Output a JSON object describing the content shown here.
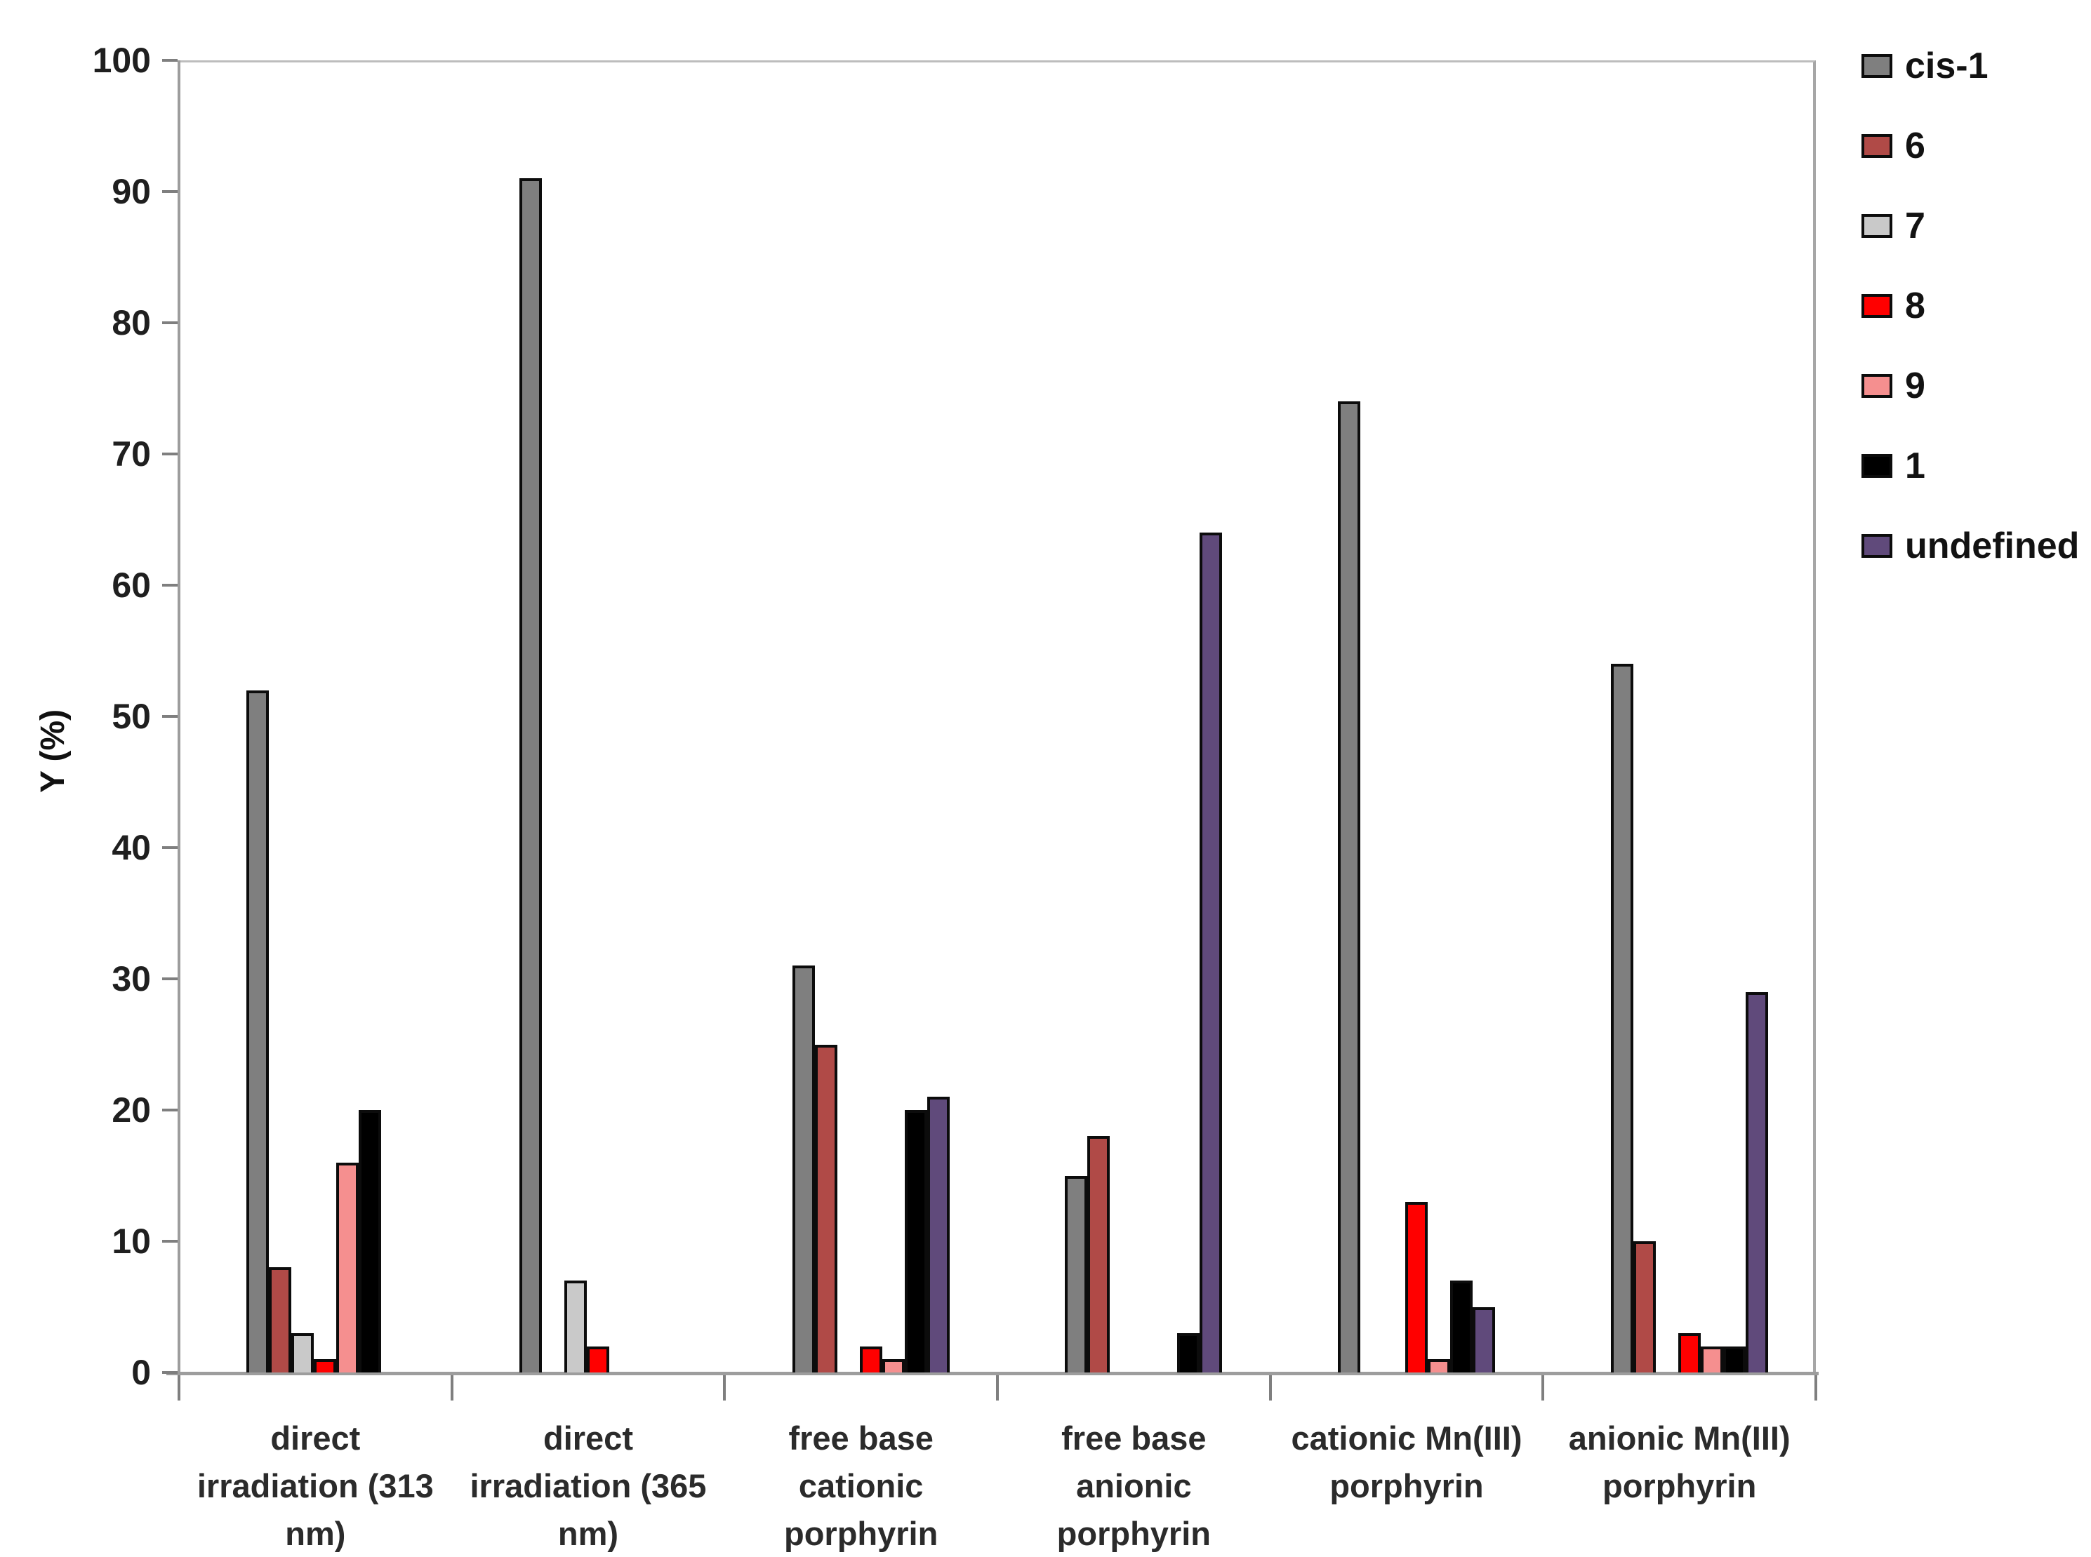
{
  "chart_data": {
    "type": "bar",
    "title": "",
    "xlabel": "",
    "ylabel": "Y (%)",
    "ylim": [
      0,
      100
    ],
    "yticks": [
      0,
      10,
      20,
      30,
      40,
      50,
      60,
      70,
      80,
      90,
      100
    ],
    "grid": false,
    "legend_position": "right-outside",
    "categories": [
      "direct irradiation (313 nm)",
      "direct irradiation (365 nm)",
      "free base cationic porphyrin",
      "free base anionic porphyrin",
      "cationic Mn(III) porphyrin",
      "anionic Mn(III) porphyrin"
    ],
    "category_label_lines": [
      [
        "direct",
        "irradiation (313",
        "nm)"
      ],
      [
        "direct",
        "irradiation (365",
        "nm)"
      ],
      [
        "free base",
        "cationic",
        "porphyrin"
      ],
      [
        "free base",
        "anionic",
        "porphyrin"
      ],
      [
        "cationic Mn(III)",
        "porphyrin"
      ],
      [
        "anionic Mn(III)",
        "porphyrin"
      ]
    ],
    "series": [
      {
        "name": "cis-1",
        "color": "#7F7F7F",
        "values": [
          52,
          91,
          31,
          15,
          74,
          54
        ]
      },
      {
        "name": "6",
        "color": "#B04A47",
        "values": [
          8,
          0,
          25,
          18,
          0,
          10
        ]
      },
      {
        "name": "7",
        "color": "#C9C9C9",
        "values": [
          3,
          7,
          0,
          0,
          0,
          0
        ]
      },
      {
        "name": "8",
        "color": "#FF0000",
        "values": [
          1,
          2,
          2,
          0,
          13,
          3
        ]
      },
      {
        "name": "9",
        "color": "#F58F8F",
        "values": [
          16,
          0,
          1,
          0,
          1,
          2
        ]
      },
      {
        "name": "1",
        "color": "#000000",
        "values": [
          20,
          0,
          20,
          3,
          7,
          2
        ]
      },
      {
        "name": "undefined",
        "color": "#604A7B",
        "values": [
          0,
          0,
          21,
          64,
          5,
          29
        ]
      }
    ]
  }
}
